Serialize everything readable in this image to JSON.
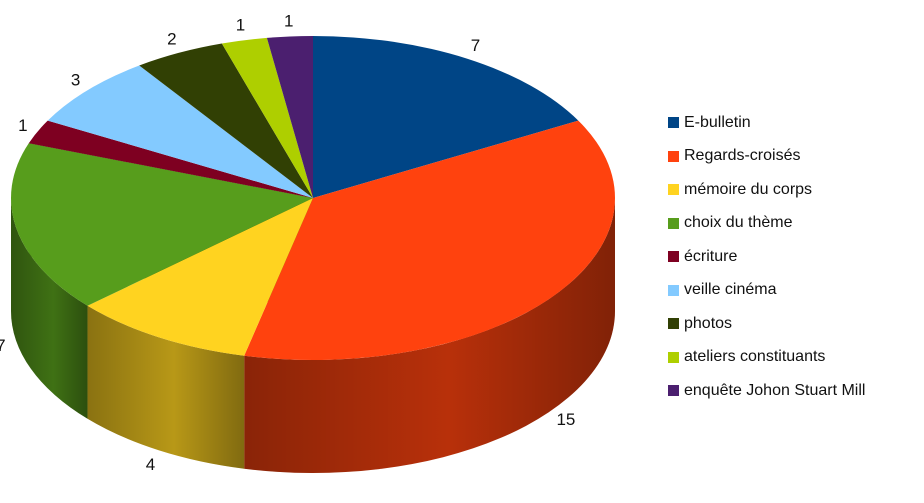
{
  "chart_data": {
    "type": "pie",
    "title": "",
    "three_d": true,
    "legend_position": "right",
    "series": [
      {
        "name": "E-bulletin",
        "value": 7,
        "color": "#004586"
      },
      {
        "name": "Regards-croisés",
        "value": 15,
        "color": "#ff420e"
      },
      {
        "name": "mémoire du corps",
        "value": 4,
        "color": "#ffd320"
      },
      {
        "name": "choix du thème",
        "value": 7,
        "color": "#579d1c"
      },
      {
        "name": "écriture",
        "value": 1,
        "color": "#7e0021"
      },
      {
        "name": "veille cinéma",
        "value": 3,
        "color": "#83caff"
      },
      {
        "name": "photos",
        "value": 2,
        "color": "#314004"
      },
      {
        "name": "ateliers constituants",
        "value": 1,
        "color": "#aecf00"
      },
      {
        "name": "enquête Johon Stuart Mill",
        "value": 1,
        "color": "#4b1f6f"
      }
    ]
  }
}
